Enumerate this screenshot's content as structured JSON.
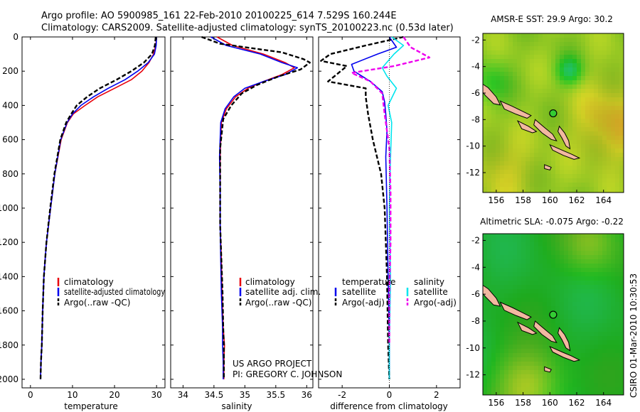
{
  "header": {
    "line1": "Argo profile: AO 5900985_161 22-Feb-2010 20100225_614 7.529S 160.244E",
    "line2": "Climatology: CARS2009. Satellite-adjusted climatology: synTS_20100223.nc (0.53d later)"
  },
  "side_label": "CSIRO 01-Mar-2010 10:30:53",
  "project_note": [
    "US ARGO PROJECT",
    "PI: GREGORY C. JOHNSON"
  ],
  "colors": {
    "climatology": "#e8000b",
    "satellite": "#0000ee",
    "argo": "#000000",
    "sat_salinity": "#00e5ee",
    "argo_salinity": "#ee00ee",
    "land": "#f2b8a0",
    "marker": "#33cc33"
  },
  "chart_data": [
    {
      "id": "temperature",
      "type": "line",
      "xlabel": "temperature",
      "ylabel": "",
      "xlim": [
        -2,
        32
      ],
      "ylim": [
        2050,
        0
      ],
      "xticks": [
        0,
        10,
        20,
        30
      ],
      "yticks": [
        0,
        200,
        400,
        600,
        800,
        1000,
        1200,
        1400,
        1600,
        1800,
        2000
      ],
      "legend": [
        "climatology",
        "satellite-adjusted climatology",
        "Argo(..raw -QC)"
      ],
      "series": [
        {
          "name": "climatology",
          "role": "climatology",
          "x": [
            30,
            29.8,
            29.3,
            28.2,
            26.5,
            24,
            20,
            16,
            13,
            10.2,
            8.8,
            7.3,
            5.8,
            4.8,
            3.8,
            3.2,
            2.9,
            2.7,
            2.5,
            2.4
          ],
          "y": [
            0,
            50,
            100,
            150,
            200,
            250,
            300,
            350,
            400,
            450,
            500,
            600,
            800,
            1000,
            1200,
            1400,
            1600,
            1800,
            1900,
            2000
          ]
        },
        {
          "name": "satellite-adjusted climatology",
          "role": "satellite",
          "x": [
            30,
            29.9,
            29.5,
            28,
            25.5,
            22.5,
            18.5,
            15,
            12,
            10,
            8.7,
            7.2,
            5.8,
            4.8,
            3.8,
            3.2,
            2.9,
            2.7,
            2.5,
            2.4
          ],
          "y": [
            0,
            50,
            100,
            150,
            200,
            250,
            300,
            350,
            400,
            450,
            500,
            600,
            800,
            1000,
            1200,
            1400,
            1600,
            1800,
            1900,
            2000
          ]
        },
        {
          "name": "Argo(..raw -QC)",
          "role": "argo",
          "x": [
            29.8,
            29.6,
            28.9,
            27,
            24,
            20.5,
            16.5,
            13.5,
            11,
            9.7,
            8.5,
            7.1,
            5.7,
            4.7,
            3.8,
            3.2,
            2.9,
            2.7,
            2.5,
            2.4
          ],
          "y": [
            0,
            50,
            100,
            150,
            200,
            250,
            300,
            350,
            400,
            450,
            500,
            600,
            800,
            1000,
            1200,
            1400,
            1600,
            1800,
            1900,
            2000
          ]
        }
      ]
    },
    {
      "id": "salinity",
      "type": "line",
      "xlabel": "salinity",
      "ylabel": "",
      "xlim": [
        33.8,
        36.1
      ],
      "ylim": [
        2050,
        0
      ],
      "xticks": [
        34,
        34.5,
        35,
        35.5,
        36
      ],
      "legend": [
        "climatology",
        "satellite adj. clim.",
        "Argo(..raw -QC)"
      ],
      "series": [
        {
          "name": "climatology",
          "role": "climatology",
          "x": [
            34.55,
            34.8,
            35.3,
            35.65,
            35.8,
            35.6,
            35.3,
            35.05,
            34.85,
            34.7,
            34.62,
            34.6,
            34.6,
            34.6,
            34.62,
            34.63,
            34.65,
            34.67,
            34.66,
            34.66
          ],
          "y": [
            0,
            50,
            100,
            150,
            180,
            220,
            260,
            300,
            350,
            420,
            500,
            700,
            900,
            1100,
            1300,
            1500,
            1700,
            1800,
            1900,
            2000
          ]
        },
        {
          "name": "satellite adj. clim.",
          "role": "satellite",
          "x": [
            34.45,
            34.7,
            35.25,
            35.6,
            35.85,
            35.65,
            35.3,
            35.0,
            34.82,
            34.68,
            34.61,
            34.59,
            34.6,
            34.6,
            34.61,
            34.62,
            34.64,
            34.64,
            34.65,
            34.65
          ],
          "y": [
            0,
            50,
            100,
            150,
            180,
            220,
            260,
            300,
            350,
            420,
            500,
            700,
            900,
            1100,
            1300,
            1500,
            1700,
            1800,
            1900,
            2000
          ]
        },
        {
          "name": "Argo(..raw -QC)",
          "role": "argo",
          "x": [
            34.3,
            34.6,
            35.6,
            35.95,
            36.05,
            35.9,
            35.55,
            35.2,
            34.95,
            34.78,
            34.65,
            34.6,
            34.6,
            34.6,
            34.62,
            34.64,
            34.65,
            34.66,
            34.66,
            34.66
          ],
          "y": [
            0,
            40,
            90,
            130,
            150,
            190,
            230,
            280,
            330,
            400,
            480,
            650,
            900,
            1100,
            1300,
            1500,
            1700,
            1800,
            1900,
            2000
          ]
        }
      ]
    },
    {
      "id": "difference",
      "type": "line",
      "xlabel": "difference from climatology",
      "ylabel": "",
      "xlim": [
        -3,
        3
      ],
      "ylim": [
        2050,
        0
      ],
      "xticks": [
        -2,
        0,
        2
      ],
      "legend": [
        "temperature",
        "satellite",
        "Argo(-adj)",
        "salinity",
        "satellite",
        "Argo(-adj)"
      ],
      "series": [
        {
          "name": "satellite",
          "group": "temperature",
          "role": "satellite",
          "x": [
            0,
            0.3,
            -0.5,
            -1.6,
            -1.5,
            -0.8,
            -0.3,
            -0.2,
            -0.15,
            -0.1,
            -0.15,
            -0.1,
            -0.05,
            0,
            0
          ],
          "y": [
            0,
            60,
            100,
            160,
            200,
            260,
            320,
            380,
            450,
            550,
            700,
            1000,
            1400,
            1800,
            2000
          ]
        },
        {
          "name": "Argo(-adj)",
          "group": "temperature",
          "role": "argo",
          "x": [
            0.6,
            -1,
            -2.5,
            -2.9,
            -1.8,
            -2.6,
            -1,
            -1,
            -0.9,
            -0.7,
            -0.35,
            -0.2,
            -0.1,
            -0.05,
            0
          ],
          "y": [
            0,
            50,
            100,
            140,
            170,
            260,
            300,
            350,
            450,
            600,
            800,
            1000,
            1400,
            1800,
            2000
          ]
        },
        {
          "name": "satellite",
          "group": "salinity",
          "role": "sat_salinity",
          "x": [
            0.1,
            0.6,
            0.2,
            -0.3,
            -0.1,
            0.3,
            -0.05,
            0.1,
            0.05,
            0,
            0.05,
            0,
            0
          ],
          "y": [
            0,
            50,
            100,
            180,
            230,
            300,
            400,
            500,
            700,
            1000,
            1400,
            1800,
            2000
          ]
        },
        {
          "name": "Argo(-adj)",
          "group": "salinity",
          "role": "argo_salinity",
          "x": [
            0.6,
            0.9,
            1.7,
            0.2,
            -1.6,
            -0.8,
            -0.3,
            -0.2,
            0,
            0.05,
            0.05,
            0,
            0
          ],
          "y": [
            0,
            60,
            120,
            170,
            210,
            260,
            330,
            450,
            650,
            900,
            1200,
            1500,
            1800
          ]
        }
      ]
    },
    {
      "id": "sst_map",
      "type": "heatmap",
      "title": "AMSR-E SST: 29.9 Argo: 30.2",
      "xlim": [
        155,
        165.5
      ],
      "ylim": [
        -13.5,
        -1.5
      ],
      "xticks": [
        156,
        158,
        160,
        162,
        164
      ],
      "yticks": [
        -2,
        -4,
        -6,
        -8,
        -10,
        -12
      ],
      "argo_position": [
        160.244,
        -7.529
      ]
    },
    {
      "id": "sla_map",
      "type": "heatmap",
      "title": "Altimetric SLA: -0.075 Argo: -0.22",
      "xlim": [
        155,
        165.5
      ],
      "ylim": [
        -13.5,
        -1.5
      ],
      "xticks": [
        156,
        158,
        160,
        162,
        164
      ],
      "yticks": [
        -2,
        -4,
        -6,
        -8,
        -10,
        -12
      ],
      "argo_position": [
        160.244,
        -7.529
      ]
    }
  ]
}
